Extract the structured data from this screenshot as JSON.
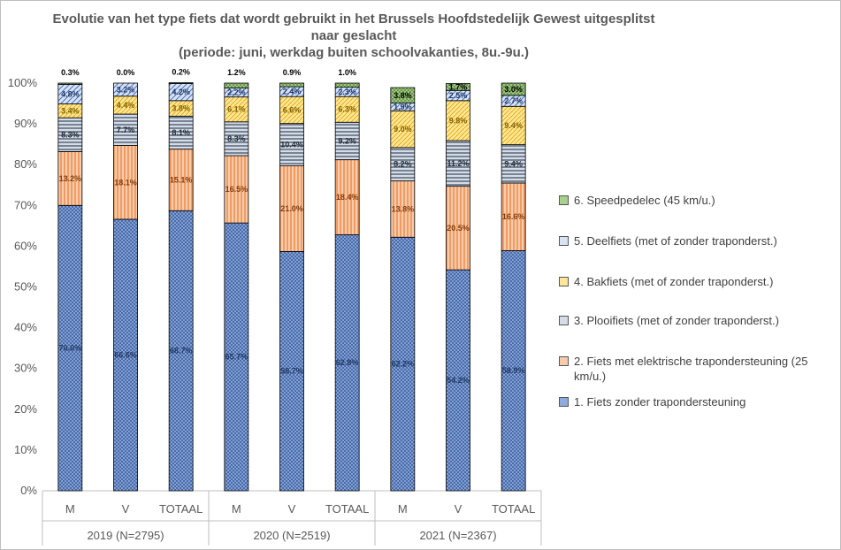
{
  "chart_data": {
    "type": "bar",
    "stacked": true,
    "percent_stacked": true,
    "title": "Evolutie van het type fiets dat wordt gebruikt in het Brussels Hoofdstedelijk Gewest uitgesplitst naar geslacht",
    "title_lines": [
      "Evolutie van het type fiets dat wordt gebruikt in het Brussels Hoofdstedelijk Gewest uitgesplitst",
      "naar geslacht",
      "(periode: juni, werkdag buiten schoolvakanties, 8u.-9u.)"
    ],
    "categories": [
      "M",
      "V",
      "TOTAAL",
      "M",
      "V",
      "TOTAAL",
      "M",
      "V",
      "TOTAAL"
    ],
    "groups": [
      {
        "label": "2019 (N=2795)",
        "span": 3
      },
      {
        "label": "2020 (N=2519)",
        "span": 3
      },
      {
        "label": "2021 (N=2367)",
        "span": 3
      }
    ],
    "series": [
      {
        "name": "1. Fiets zonder trapondersteuning",
        "color": "#4472c4",
        "values": [
          70.0,
          66.6,
          68.7,
          65.7,
          58.7,
          62.8,
          62.2,
          54.2,
          58.9
        ],
        "labels": [
          "70.0%",
          "66.6%",
          "68.7%",
          "65.7%",
          "58.7%",
          "62.8%",
          "62.2%",
          "54.2%",
          "58.9%"
        ]
      },
      {
        "name": "2. Fiets met elektrische trapondersteuning (25 km/u.)",
        "color": "#ed7d31",
        "values": [
          13.2,
          18.1,
          15.1,
          16.5,
          21.0,
          18.4,
          13.8,
          20.5,
          16.6
        ],
        "labels": [
          "13.2%",
          "18.1%",
          "15.1%",
          "16.5%",
          "21.0%",
          "18.4%",
          "13.8%",
          "20.5%",
          "16.6%"
        ]
      },
      {
        "name": "3. Plooifiets (met of zonder traponderst.)",
        "color": "#44546a",
        "values": [
          8.3,
          7.7,
          8.1,
          8.3,
          10.4,
          9.2,
          8.2,
          11.2,
          9.4
        ],
        "labels": [
          "8.3%",
          "7.7%",
          "8.1%",
          "8.3%",
          "10.4%",
          "9.2%",
          "8.2%",
          "11.2%",
          "9.4%"
        ]
      },
      {
        "name": "4. Bakfiets (met of zonder traponderst.)",
        "color": "#ffc000",
        "values": [
          3.4,
          4.4,
          3.8,
          6.1,
          6.6,
          6.3,
          9.0,
          9.8,
          9.4
        ],
        "labels": [
          "3.4%",
          "4.4%",
          "3.8%",
          "6.1%",
          "6.6%",
          "6.3%",
          "9.0%",
          "9.8%",
          "9.4%"
        ]
      },
      {
        "name": "5. Deelfiets (met of zonder traponderst.)",
        "color": "#4472c4",
        "values": [
          4.8,
          3.2,
          4.2,
          2.2,
          2.4,
          2.3,
          1.9,
          2.5,
          2.7
        ],
        "labels": [
          "4.8%",
          "3.2%",
          "4.2%",
          "2.2%",
          "2.4%",
          "2.3%",
          "1.9%",
          "2.5%",
          "2.7%"
        ]
      },
      {
        "name": "6. Speedpedelec (45 km/u.)",
        "color": "#70ad47",
        "values": [
          0.3,
          0.0,
          0.2,
          1.2,
          0.9,
          1.0,
          3.8,
          1.7,
          3.0
        ],
        "labels": [
          "0.3%",
          "0.0%",
          "0.2%",
          "1.2%",
          "0.9%",
          "1.0%",
          "3.8%",
          "1.7%",
          "3.0%"
        ]
      }
    ],
    "yticks": [
      "0%",
      "10%",
      "20%",
      "30%",
      "40%",
      "50%",
      "60%",
      "70%",
      "80%",
      "90%",
      "100%"
    ],
    "ylim": [
      0,
      100
    ],
    "grid": false,
    "legend_position": "right"
  }
}
